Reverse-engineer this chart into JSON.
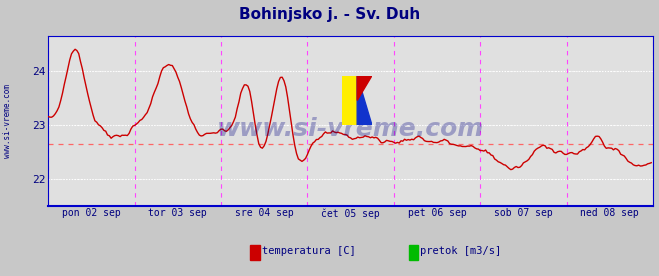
{
  "title": "Bohinjsko j. - Sv. Duh",
  "title_color": "#000080",
  "title_fontsize": 11,
  "bg_color": "#c8c8c8",
  "plot_bg_color": "#e0e0e0",
  "tick_color": "#000080",
  "axis_color": "#0000cc",
  "grid_color": "#ffffff",
  "vline_color": "#ff44ff",
  "hline_color": "#ff6666",
  "hline_y": 22.65,
  "watermark": "www.si-vreme.com",
  "watermark_color": "#000080",
  "watermark_alpha": 0.3,
  "xlabels": [
    "pon 02 sep",
    "tor 03 sep",
    "sre 04 sep",
    "čet 05 sep",
    "pet 06 sep",
    "sob 07 sep",
    "ned 08 sep"
  ],
  "yticks": [
    22,
    23,
    24
  ],
  "ylim": [
    21.5,
    24.65
  ],
  "xlim": [
    0,
    336
  ],
  "legend_items": [
    "temperatura [C]",
    "pretok [m3/s]"
  ],
  "legend_colors": [
    "#cc0000",
    "#00bb00"
  ],
  "left_label": "www.si-vreme.com",
  "line_color": "#cc0000",
  "line_width": 1.0,
  "n_points": 336,
  "n_days": 7
}
